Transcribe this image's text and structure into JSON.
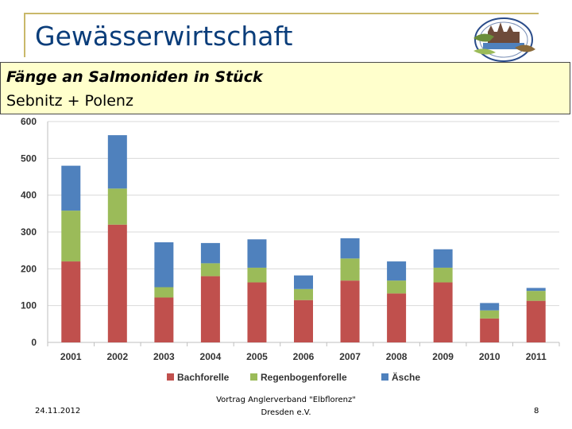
{
  "header": {
    "title": "Gewässerwirtschaft"
  },
  "banner": {
    "line1": "Fänge an Salmoniden in Stück",
    "line2": "Sebnitz + Polenz"
  },
  "colors": {
    "frame": "#c9b86a",
    "title": "#0a3d7a",
    "banner_bg": "#ffffcc"
  },
  "chart_data": {
    "type": "bar",
    "stacked": true,
    "categories": [
      "2001",
      "2002",
      "2003",
      "2004",
      "2005",
      "2006",
      "2007",
      "2008",
      "2009",
      "2010",
      "2011"
    ],
    "series": [
      {
        "name": "Bachforelle",
        "color": "#c0504d",
        "values": [
          220,
          320,
          122,
          180,
          163,
          115,
          168,
          133,
          163,
          65,
          113
        ]
      },
      {
        "name": "Regenbogenforelle",
        "color": "#9bbb59",
        "values": [
          138,
          98,
          28,
          35,
          40,
          30,
          60,
          35,
          40,
          22,
          27
        ]
      },
      {
        "name": "Äsche",
        "color": "#4f81bd",
        "values": [
          122,
          145,
          122,
          55,
          77,
          37,
          55,
          52,
          50,
          20,
          8
        ]
      }
    ],
    "yticks": [
      "0",
      "100",
      "200",
      "300",
      "400",
      "500",
      "600"
    ],
    "ylim": [
      0,
      600
    ],
    "title": "",
    "xlabel": "",
    "ylabel": "",
    "legend_position": "bottom",
    "grid": true
  },
  "footer": {
    "date": "24.11.2012",
    "center_line1": "Vortrag Anglerverband \"Elbflorenz\"",
    "center_line2": "Dresden e.V.",
    "page": "8"
  }
}
